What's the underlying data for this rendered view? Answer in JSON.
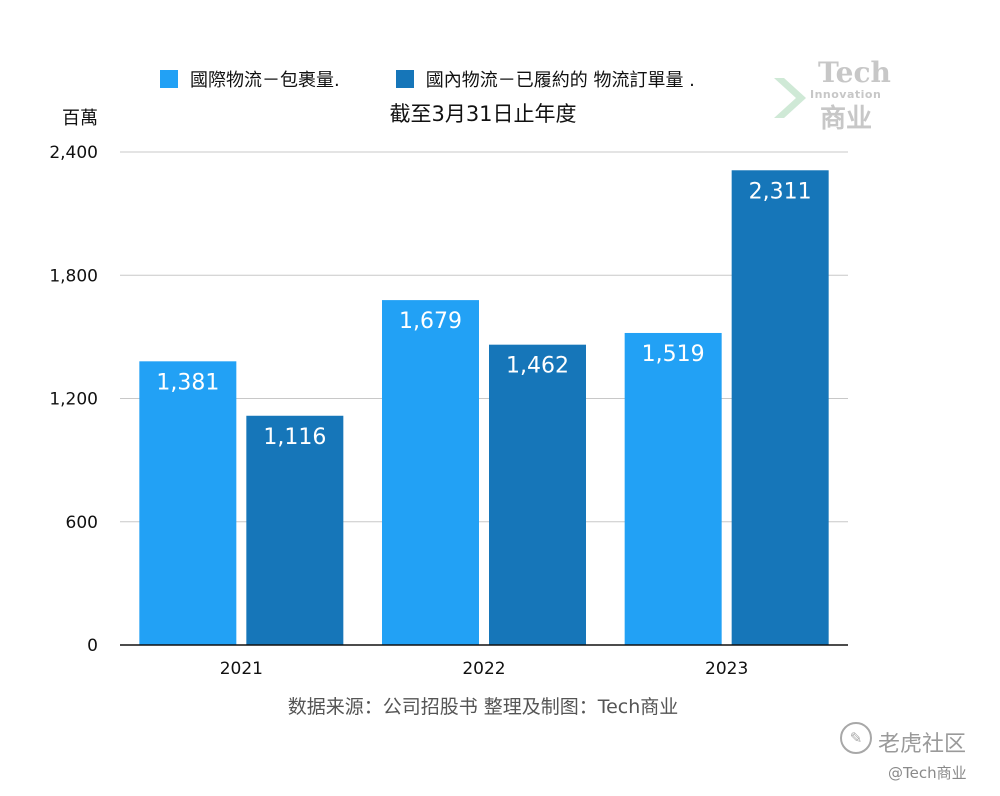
{
  "legend": [
    {
      "label": "國際物流－包裹量.",
      "color": "#22a1f5"
    },
    {
      "label": "國內物流－已履約的 物流訂單量 .",
      "color": "#1676b9"
    }
  ],
  "title": "截至3月31日止年度",
  "ylabel": "百萬",
  "source": "数据来源：公司招股书  整理及制图：Tech商业",
  "logo": {
    "line1": "Tech",
    "line2": "Innovation",
    "line3": "商业"
  },
  "watermark": {
    "brand": "老虎社区",
    "handle": "@Tech商业"
  },
  "colors": {
    "international": "#22a1f5",
    "domestic": "#1676b9"
  },
  "chart_data": {
    "type": "bar",
    "categories": [
      "2021",
      "2022",
      "2023"
    ],
    "series": [
      {
        "name": "國際物流－包裹量.",
        "values": [
          1381,
          1679,
          1519
        ]
      },
      {
        "name": "國內物流－已履約的 物流訂單量 .",
        "values": [
          1116,
          1462,
          2311
        ]
      }
    ],
    "data_labels": {
      "series0": [
        "1,381",
        "1,679",
        "1,519"
      ],
      "series1": [
        "1,116",
        "1,462",
        "2,311"
      ]
    },
    "title": "截至3月31日止年度",
    "ylabel": "百萬",
    "ylim": [
      0,
      2400
    ],
    "yticks": [
      0,
      600,
      1200,
      1800,
      2400
    ],
    "ytick_labels": [
      "0",
      "600",
      "1,200",
      "1,800",
      "2,400"
    ],
    "grid": true,
    "legend_position": "top"
  }
}
